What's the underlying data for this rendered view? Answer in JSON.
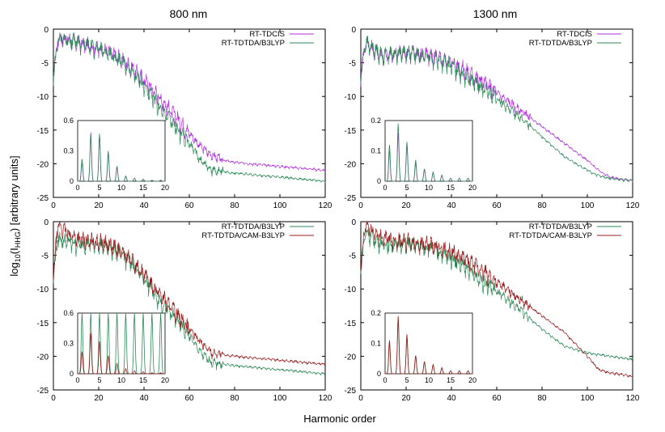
{
  "figure": {
    "column_titles": [
      "800 nm",
      "1300 nm"
    ],
    "xlabel": "Harmonic order",
    "ylabel_prefix": "log",
    "ylabel_sub1": "10",
    "ylabel_mid": "(I",
    "ylabel_sub2": "HHG",
    "ylabel_suffix": ") [arbitrary units]"
  },
  "chart_data": [
    {
      "type": "line",
      "panel": "top-left",
      "xlim": [
        0,
        120
      ],
      "ylim": [
        -25,
        0
      ],
      "xticks": [
        0,
        20,
        40,
        60,
        80,
        100,
        120
      ],
      "yticks": [
        0,
        -5,
        -10,
        -15,
        -20,
        -25
      ],
      "legend_placement": "top-right",
      "series": [
        {
          "name": "RT-TDCIS",
          "color": "#b030e0",
          "x": [
            0,
            2,
            5,
            10,
            15,
            20,
            25,
            30,
            35,
            40,
            45,
            50,
            55,
            60,
            65,
            70,
            75,
            80,
            90,
            100,
            110,
            120
          ],
          "y": [
            -7,
            -1.5,
            -1.5,
            -2,
            -2.5,
            -3,
            -3.5,
            -4.5,
            -6,
            -7.5,
            -9.5,
            -11.5,
            -13.5,
            -15.5,
            -17.5,
            -18.8,
            -19.5,
            -19.8,
            -20.1,
            -20.4,
            -20.7,
            -21
          ]
        },
        {
          "name": "RT-TDTDA/B3LYP",
          "color": "#2e8b57",
          "x": [
            0,
            2,
            5,
            10,
            15,
            20,
            25,
            30,
            35,
            40,
            45,
            50,
            55,
            60,
            65,
            70,
            75,
            80,
            90,
            100,
            110,
            120
          ],
          "y": [
            -7,
            -1.5,
            -1.5,
            -2,
            -2.5,
            -3,
            -3.8,
            -5,
            -6.5,
            -8.5,
            -11,
            -13,
            -15,
            -17,
            -19.5,
            -21,
            -21.2,
            -21.4,
            -21.7,
            -22,
            -22.3,
            -22.6
          ]
        }
      ],
      "inset": {
        "xlim": [
          0,
          20
        ],
        "ylim": [
          0,
          0.6
        ],
        "xticks": [
          0,
          5,
          10,
          15,
          20
        ],
        "yticks": [
          0,
          0.3,
          0.6
        ],
        "series": [
          {
            "name": "RT-TDCIS",
            "color": "#b030e0",
            "x": [
              1,
              3,
              5,
              7,
              9,
              11,
              13,
              15,
              17,
              19
            ],
            "y": [
              0.18,
              0.48,
              0.46,
              0.28,
              0.14,
              0.05,
              0.03,
              0.02,
              0.01,
              0.01
            ]
          },
          {
            "name": "RT-TDTDA/B3LYP",
            "color": "#2e8b57",
            "x": [
              1,
              3,
              5,
              7,
              9,
              11,
              13,
              15,
              17,
              19
            ],
            "y": [
              0.22,
              0.46,
              0.47,
              0.3,
              0.15,
              0.05,
              0.03,
              0.02,
              0.01,
              0.01
            ]
          }
        ]
      }
    },
    {
      "type": "line",
      "panel": "top-right",
      "xlim": [
        0,
        120
      ],
      "ylim": [
        -25,
        0
      ],
      "xticks": [
        0,
        20,
        40,
        60,
        80,
        100,
        120
      ],
      "yticks": [
        0,
        -5,
        -10,
        -15,
        -20,
        -25
      ],
      "legend_placement": "top-right",
      "series": [
        {
          "name": "RT-TDCIS",
          "color": "#b030e0",
          "x": [
            0,
            2,
            5,
            10,
            20,
            30,
            40,
            50,
            60,
            70,
            80,
            90,
            100,
            105,
            110,
            115,
            120
          ],
          "y": [
            -7,
            -2,
            -3,
            -4,
            -3.5,
            -4,
            -5,
            -7,
            -9.5,
            -12,
            -14.5,
            -17,
            -19.5,
            -21,
            -22,
            -22.3,
            -22.5
          ]
        },
        {
          "name": "RT-TDTDA/B3LYP",
          "color": "#2e8b57",
          "x": [
            0,
            2,
            5,
            10,
            20,
            30,
            40,
            50,
            60,
            70,
            80,
            90,
            100,
            105,
            110,
            115,
            120
          ],
          "y": [
            -7,
            -2,
            -3,
            -4,
            -3.5,
            -4.2,
            -5.5,
            -8,
            -10.5,
            -13,
            -16,
            -19,
            -21,
            -21.8,
            -22.2,
            -22.4,
            -22.5
          ]
        }
      ],
      "inset": {
        "xlim": [
          0,
          20
        ],
        "ylim": [
          0,
          0.2
        ],
        "xticks": [
          0,
          5,
          10,
          15,
          20
        ],
        "yticks": [
          0,
          0.1,
          0.2
        ],
        "series": [
          {
            "name": "RT-TDCIS",
            "color": "#b030e0",
            "x": [
              1,
              3,
              5,
              7,
              9,
              11,
              13,
              15,
              17,
              19
            ],
            "y": [
              0.1,
              0.16,
              0.12,
              0.06,
              0.04,
              0.03,
              0.02,
              0.01,
              0.01,
              0.01
            ]
          },
          {
            "name": "RT-TDTDA/B3LYP",
            "color": "#2e8b57",
            "x": [
              1,
              3,
              5,
              7,
              9,
              11,
              13,
              15,
              17,
              19
            ],
            "y": [
              0.12,
              0.19,
              0.13,
              0.07,
              0.04,
              0.03,
              0.02,
              0.01,
              0.01,
              0.01
            ]
          }
        ]
      }
    },
    {
      "type": "line",
      "panel": "bottom-left",
      "xlim": [
        0,
        120
      ],
      "ylim": [
        -25,
        0
      ],
      "xticks": [
        0,
        20,
        40,
        60,
        80,
        100,
        120
      ],
      "yticks": [
        0,
        -5,
        -10,
        -15,
        -20,
        -25
      ],
      "legend_placement": "top-right",
      "series": [
        {
          "name": "RT-TDTDA/B3LYP",
          "color": "#2e8b57",
          "x": [
            0,
            2,
            5,
            10,
            15,
            20,
            25,
            30,
            35,
            40,
            45,
            50,
            55,
            60,
            65,
            70,
            75,
            80,
            90,
            100,
            110,
            120
          ],
          "y": [
            -8,
            -2.5,
            -3,
            -3.5,
            -3.5,
            -3.5,
            -4,
            -5,
            -6.5,
            -8.5,
            -11,
            -13,
            -15,
            -17,
            -19.5,
            -21,
            -21.2,
            -21.4,
            -21.7,
            -22,
            -22.3,
            -22.6
          ]
        },
        {
          "name": "RT-TDTDA/CAM-B3LYP",
          "color": "#9b1c1c",
          "x": [
            0,
            2,
            5,
            10,
            15,
            20,
            25,
            30,
            35,
            40,
            45,
            50,
            55,
            60,
            65,
            70,
            75,
            80,
            90,
            100,
            110,
            120
          ],
          "y": [
            -8,
            -0.5,
            -1.5,
            -2.5,
            -3,
            -3,
            -3.5,
            -4.5,
            -6,
            -8,
            -10,
            -12,
            -14,
            -16,
            -18,
            -19.5,
            -19.8,
            -20,
            -20.3,
            -20.6,
            -20.9,
            -21.2
          ]
        }
      ],
      "inset": {
        "xlim": [
          0,
          20
        ],
        "ylim": [
          0,
          0.6
        ],
        "xticks": [
          0,
          5,
          10,
          15,
          20
        ],
        "yticks": [
          0,
          0.3,
          0.6
        ],
        "series": [
          {
            "name": "RT-TDTDA/B3LYP",
            "color": "#2e8b57",
            "x": [
              1,
              3,
              5,
              7,
              9,
              11,
              13,
              15,
              17,
              19
            ],
            "y": [
              0.6,
              0.6,
              0.6,
              0.6,
              0.6,
              0.6,
              0.6,
              0.6,
              0.6,
              0.6
            ]
          },
          {
            "name": "RT-TDTDA/CAM-B3LYP",
            "color": "#9b1c1c",
            "x": [
              1,
              3,
              5,
              7,
              9,
              11,
              13,
              15,
              17,
              19
            ],
            "y": [
              0.22,
              0.4,
              0.32,
              0.18,
              0.1,
              0.05,
              0.03,
              0.02,
              0.01,
              0.01
            ]
          }
        ]
      }
    },
    {
      "type": "line",
      "panel": "bottom-right",
      "xlim": [
        0,
        120
      ],
      "ylim": [
        -25,
        0
      ],
      "xticks": [
        0,
        20,
        40,
        60,
        80,
        100,
        120
      ],
      "yticks": [
        0,
        -5,
        -10,
        -15,
        -20,
        -25
      ],
      "legend_placement": "top-right",
      "series": [
        {
          "name": "RT-TDTDA/B3LYP",
          "color": "#2e8b57",
          "x": [
            0,
            2,
            5,
            10,
            20,
            30,
            40,
            50,
            60,
            70,
            80,
            90,
            100,
            110,
            120
          ],
          "y": [
            -7,
            -1.5,
            -2.5,
            -3.5,
            -3.5,
            -4,
            -5.5,
            -8,
            -10.5,
            -13,
            -16,
            -18.5,
            -19.5,
            -20,
            -20.5
          ]
        },
        {
          "name": "RT-TDTDA/CAM-B3LYP",
          "color": "#9b1c1c",
          "x": [
            0,
            2,
            5,
            10,
            20,
            30,
            40,
            50,
            60,
            70,
            80,
            90,
            100,
            105,
            110,
            115,
            120
          ],
          "y": [
            -7,
            -0.5,
            -1.5,
            -2.5,
            -3,
            -3.5,
            -4.5,
            -6.5,
            -9,
            -11.5,
            -14,
            -16.5,
            -20,
            -22,
            -22.5,
            -22.7,
            -23
          ]
        }
      ],
      "inset": {
        "xlim": [
          0,
          20
        ],
        "ylim": [
          0,
          0.2
        ],
        "xticks": [
          0,
          5,
          10,
          15,
          20
        ],
        "yticks": [
          0,
          0.1,
          0.2
        ],
        "series": [
          {
            "name": "RT-TDTDA/B3LYP",
            "color": "#2e8b57",
            "x": [
              1,
              3,
              5,
              7,
              9,
              11,
              13,
              15,
              17,
              19
            ],
            "y": [
              0.1,
              0.18,
              0.12,
              0.06,
              0.04,
              0.03,
              0.02,
              0.01,
              0.01,
              0.01
            ]
          },
          {
            "name": "RT-TDTDA/CAM-B3LYP",
            "color": "#9b1c1c",
            "x": [
              1,
              3,
              5,
              7,
              9,
              11,
              13,
              15,
              17,
              19
            ],
            "y": [
              0.11,
              0.19,
              0.13,
              0.06,
              0.04,
              0.03,
              0.02,
              0.01,
              0.01,
              0.01
            ]
          }
        ]
      }
    }
  ]
}
